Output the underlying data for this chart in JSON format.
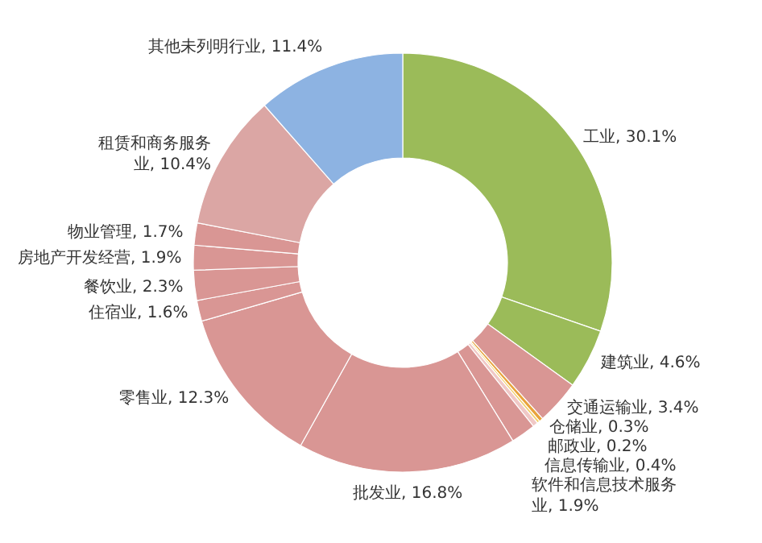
{
  "chart_data": {
    "type": "donut",
    "categories": [
      "工业",
      "建筑业",
      "交通运输业",
      "仓储业",
      "邮政业",
      "信息传输业",
      "软件和信息技术服务业",
      "批发业",
      "零售业",
      "住宿业",
      "餐饮业",
      "房地产开发经营",
      "物业管理",
      "租赁和商务服务业",
      "其他未列明行业"
    ],
    "values": [
      30.1,
      4.6,
      3.4,
      0.3,
      0.2,
      0.4,
      1.9,
      16.8,
      12.3,
      1.6,
      2.3,
      1.9,
      1.7,
      10.4,
      11.4
    ],
    "value_labels": [
      "30.1%",
      "4.6%",
      "3.4%",
      "0.3%",
      "0.2%",
      "0.4%",
      "1.9%",
      "16.8%",
      "12.3%",
      "1.6%",
      "2.3%",
      "1.9%",
      "1.7%",
      "10.4%",
      "11.4%"
    ],
    "colors": [
      "#9bbb59",
      "#9bbb59",
      "#d99694",
      "#e8a33c",
      "#f2d06b",
      "#f0c8c6",
      "#d99694",
      "#d99694",
      "#d99694",
      "#d99694",
      "#d99694",
      "#d99694",
      "#d99694",
      "#dba6a4",
      "#8db3e2"
    ],
    "legend": false
  }
}
